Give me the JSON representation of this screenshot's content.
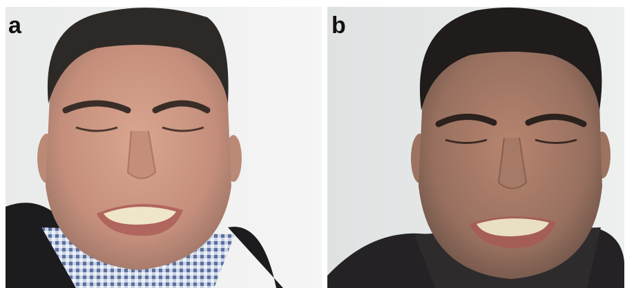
{
  "panels": [
    {
      "label": "a"
    },
    {
      "label": "b"
    }
  ]
}
